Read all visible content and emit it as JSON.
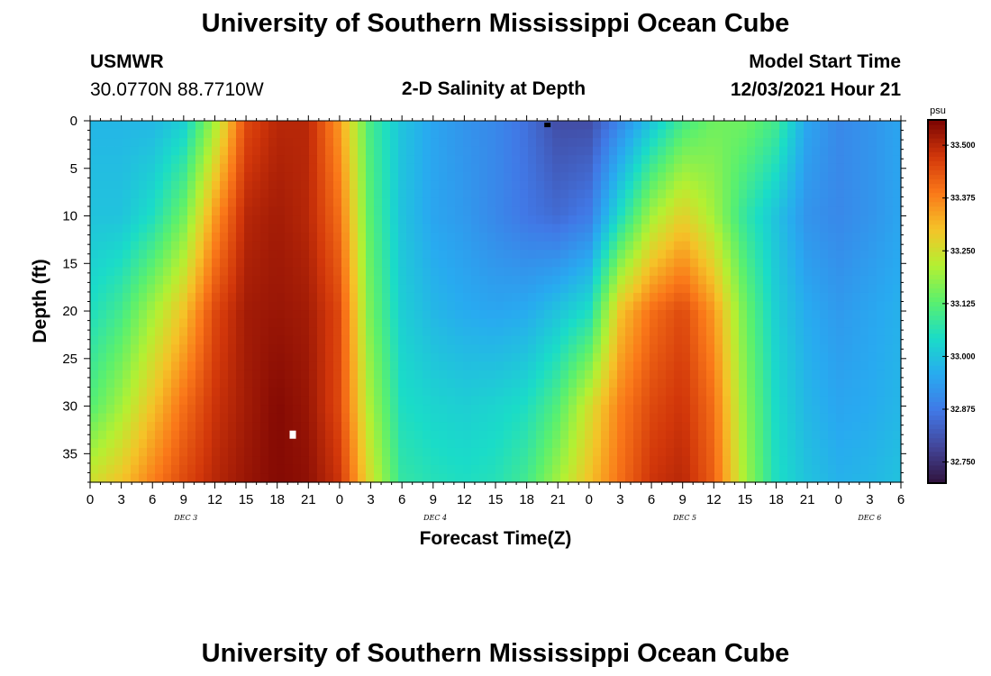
{
  "header": {
    "title": "University of Southern Mississippi Ocean Cube",
    "station": "USMWR",
    "coords": "30.0770N  88.7710W",
    "subtitle": "2-D Salinity at Depth",
    "model_label": "Model Start Time",
    "model_time": "12/03/2021 Hour 21"
  },
  "footer": {
    "title": "University of Southern Mississippi Ocean Cube"
  },
  "colorbar": {
    "unit": "psu",
    "ticks": [
      "32.750",
      "32.875",
      "33.000",
      "33.125",
      "33.250",
      "33.375",
      "33.500"
    ],
    "range": [
      32.7,
      33.56
    ]
  },
  "chart_data": {
    "type": "heatmap",
    "xlabel": "Forecast Time(Z)",
    "ylabel": "Depth (ft)",
    "x_tick_labels": [
      "0",
      "3",
      "6",
      "9",
      "12",
      "15",
      "18",
      "21",
      "0",
      "3",
      "6",
      "9",
      "12",
      "15",
      "18",
      "21",
      "0",
      "3",
      "6",
      "9",
      "12",
      "15",
      "18",
      "21",
      "0",
      "3",
      "6"
    ],
    "day_labels": [
      "DEC 3",
      "DEC 4",
      "DEC 5",
      "DEC 6"
    ],
    "y_tick_labels": [
      "0",
      "5",
      "10",
      "15",
      "20",
      "25",
      "30",
      "35"
    ],
    "x_range_hours": [
      0,
      78
    ],
    "y_range_ft": [
      0,
      38
    ],
    "z_unit": "psu",
    "z_range": [
      32.7,
      33.56
    ],
    "depths_ft": [
      0,
      10,
      20,
      30,
      38
    ],
    "hours": [
      0,
      3,
      6,
      9,
      12,
      15,
      18,
      21,
      24,
      27,
      30,
      33,
      36,
      39,
      42,
      45,
      48,
      51,
      54,
      57,
      60,
      63,
      66,
      69,
      72,
      75,
      78
    ],
    "salinity": [
      [
        32.98,
        32.98,
        32.98,
        33.02,
        33.2,
        33.45,
        33.5,
        33.5,
        33.35,
        33.1,
        33.0,
        32.95,
        32.92,
        32.9,
        32.86,
        32.8,
        32.8,
        32.9,
        33.0,
        33.1,
        33.15,
        33.15,
        33.1,
        32.95,
        32.9,
        32.92,
        32.95
      ],
      [
        33.0,
        33.0,
        33.05,
        33.15,
        33.35,
        33.5,
        33.52,
        33.5,
        33.4,
        33.12,
        33.0,
        32.95,
        32.93,
        32.9,
        32.87,
        32.85,
        32.88,
        33.05,
        33.2,
        33.28,
        33.2,
        33.08,
        33.0,
        32.92,
        32.9,
        32.92,
        32.95
      ],
      [
        33.05,
        33.1,
        33.2,
        33.3,
        33.45,
        33.52,
        33.53,
        33.52,
        33.45,
        33.15,
        33.02,
        32.98,
        32.96,
        32.95,
        32.96,
        33.0,
        33.05,
        33.3,
        33.4,
        33.45,
        33.35,
        33.15,
        33.02,
        32.96,
        32.93,
        32.95,
        32.97
      ],
      [
        33.12,
        33.2,
        33.3,
        33.4,
        33.48,
        33.52,
        33.55,
        33.53,
        33.45,
        33.2,
        33.05,
        33.03,
        33.02,
        33.03,
        33.05,
        33.12,
        33.25,
        33.38,
        33.45,
        33.48,
        33.4,
        33.18,
        33.04,
        32.98,
        32.95,
        32.96,
        32.98
      ],
      [
        33.25,
        33.3,
        33.38,
        33.45,
        33.5,
        33.53,
        33.55,
        33.54,
        33.48,
        33.25,
        33.08,
        33.06,
        33.05,
        33.06,
        33.1,
        33.2,
        33.3,
        33.4,
        33.48,
        33.5,
        33.42,
        33.2,
        33.05,
        33.0,
        32.97,
        32.98,
        33.0
      ]
    ],
    "markers": [
      {
        "hour": 44,
        "depth_ft": 0.2,
        "color": "#000000"
      },
      {
        "hour": 19.5,
        "depth_ft": 33,
        "color": "#ffffff"
      }
    ]
  }
}
